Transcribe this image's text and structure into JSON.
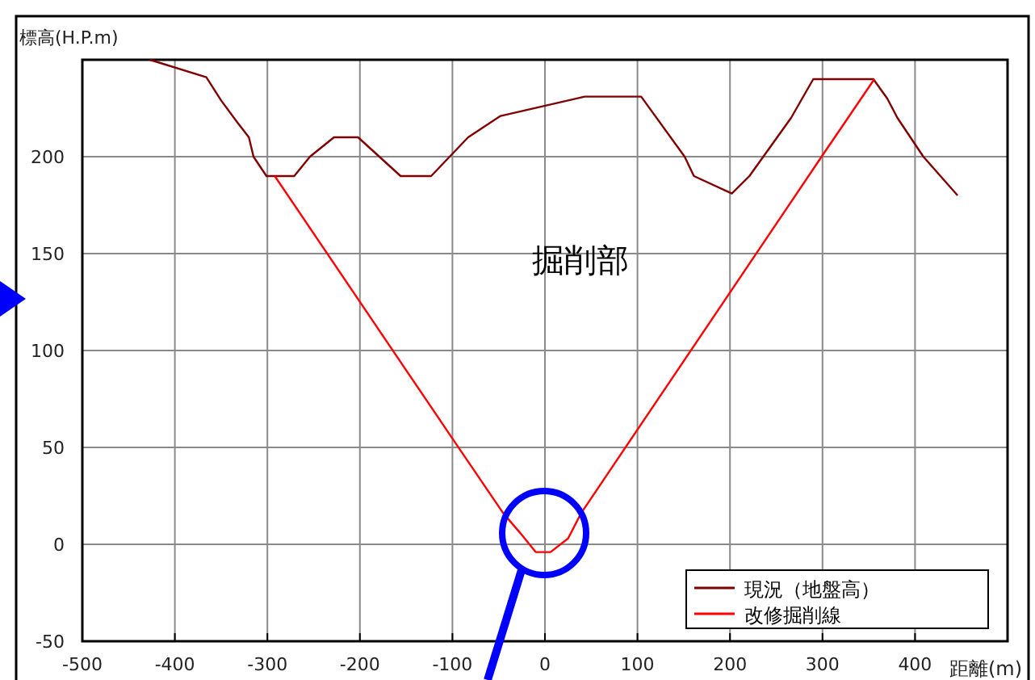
{
  "chart_data": {
    "type": "line",
    "xlabel": "距離(m)",
    "ylabel": "標高(H.P.m)",
    "xlim": [
      -500,
      500
    ],
    "ylim": [
      -50,
      250
    ],
    "xticks": [
      -500,
      -400,
      -300,
      -200,
      -100,
      0,
      100,
      200,
      300,
      400,
      {
        "value": 500,
        "label": null
      }
    ],
    "yticks": [
      -50,
      0,
      50,
      100,
      150,
      200,
      {
        "value": 250,
        "label": null
      }
    ],
    "grid": true,
    "legend": "bottom right",
    "line_style": "solid",
    "marker": "none",
    "annotations": [
      "掘削部"
    ],
    "series": [
      {
        "name": "現況（地盤高）",
        "color": "#800000",
        "x": [
          -427,
          -366,
          -350,
          -333,
          -320,
          -315,
          -301,
          -271,
          -254,
          -228,
          -202,
          -156,
          -123,
          -83,
          -48,
          43,
          104,
          151,
          161,
          202,
          221,
          266,
          290,
          355,
          370,
          381,
          409,
          446
        ],
        "values": [
          250,
          241,
          229,
          218,
          210,
          200,
          190,
          190,
          200,
          210,
          210,
          190,
          190,
          210,
          221,
          231,
          231,
          200,
          190,
          181,
          190,
          220,
          240,
          240,
          230,
          220,
          200,
          180
        ]
      },
      {
        "name": "改修掘削線",
        "color": "#ff0000",
        "x": [
          -292,
          -102,
          -45,
          -27,
          -10,
          6,
          25,
          39,
          299,
          356
        ],
        "values": [
          190,
          56,
          16,
          6,
          -4,
          -4,
          3,
          16,
          200,
          240
        ]
      }
    ]
  }
}
